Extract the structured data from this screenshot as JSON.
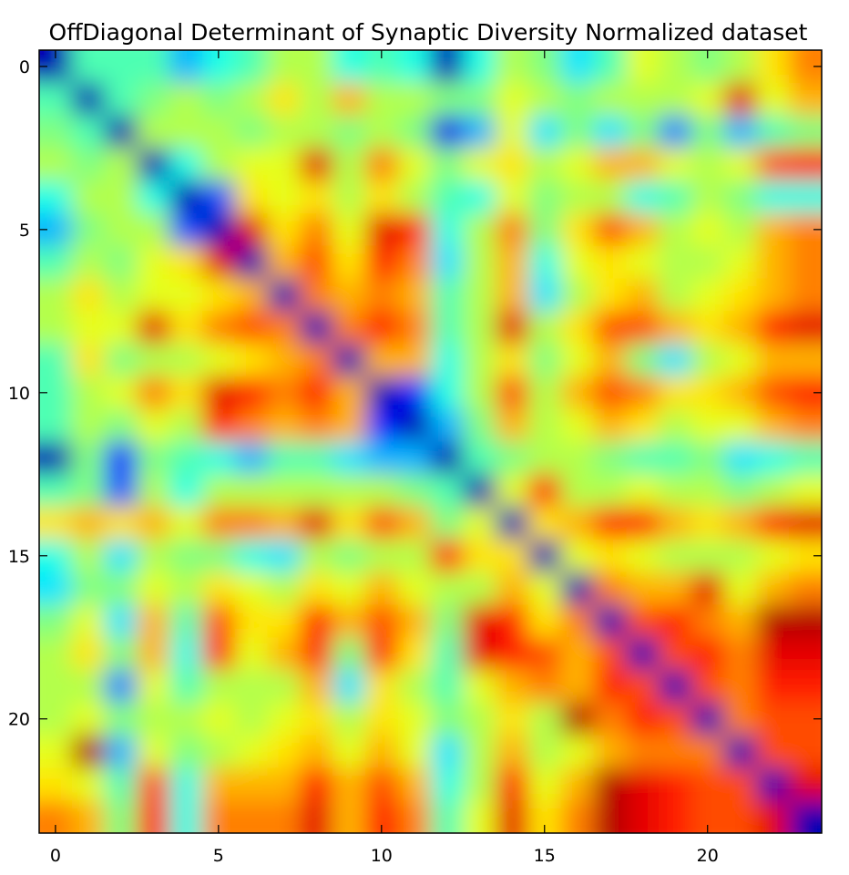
{
  "chart_data": {
    "type": "heatmap",
    "title": "OffDiagonal Determinant of Synaptic Diversity Normalized dataset",
    "xlabel": "",
    "ylabel": "",
    "colormap": "jet",
    "interpolation": "smooth",
    "value_range": [
      0,
      1
    ],
    "x_ticks": [
      0,
      5,
      10,
      15,
      20
    ],
    "y_ticks": [
      0,
      5,
      10,
      15,
      20
    ],
    "xlim": [
      -0.5,
      23.5
    ],
    "ylim": [
      23.5,
      -0.5
    ],
    "grid": false,
    "legend": "none",
    "values": [
      [
        0.05,
        0.45,
        0.45,
        0.45,
        0.3,
        0.4,
        0.45,
        0.55,
        0.55,
        0.4,
        0.45,
        0.4,
        0.05,
        0.4,
        0.55,
        0.5,
        0.35,
        0.45,
        0.6,
        0.55,
        0.5,
        0.55,
        0.65,
        0.75
      ],
      [
        0.45,
        0.05,
        0.45,
        0.5,
        0.55,
        0.5,
        0.55,
        0.65,
        0.55,
        0.7,
        0.55,
        0.55,
        0.5,
        0.5,
        0.6,
        0.55,
        0.5,
        0.55,
        0.55,
        0.55,
        0.6,
        0.9,
        0.6,
        0.7
      ],
      [
        0.5,
        0.45,
        0.05,
        0.55,
        0.55,
        0.55,
        0.5,
        0.55,
        0.55,
        0.5,
        0.55,
        0.5,
        0.1,
        0.3,
        0.6,
        0.35,
        0.5,
        0.35,
        0.5,
        0.25,
        0.5,
        0.3,
        0.45,
        0.5
      ],
      [
        0.55,
        0.5,
        0.55,
        0.05,
        0.4,
        0.55,
        0.6,
        0.6,
        0.9,
        0.55,
        0.75,
        0.6,
        0.5,
        0.6,
        0.65,
        0.55,
        0.6,
        0.7,
        0.7,
        0.6,
        0.55,
        0.6,
        0.8,
        0.85
      ],
      [
        0.4,
        0.55,
        0.55,
        0.4,
        0.05,
        0.2,
        0.65,
        0.6,
        0.65,
        0.55,
        0.65,
        0.55,
        0.45,
        0.4,
        0.6,
        0.5,
        0.55,
        0.55,
        0.4,
        0.45,
        0.55,
        0.5,
        0.4,
        0.4
      ],
      [
        0.3,
        0.5,
        0.55,
        0.55,
        0.2,
        0.05,
        0.9,
        0.65,
        0.75,
        0.6,
        0.9,
        0.85,
        0.4,
        0.55,
        0.75,
        0.5,
        0.65,
        0.8,
        0.7,
        0.55,
        0.6,
        0.55,
        0.7,
        0.75
      ],
      [
        0.45,
        0.55,
        0.5,
        0.6,
        0.65,
        0.9,
        0.05,
        0.7,
        0.8,
        0.65,
        0.85,
        0.75,
        0.35,
        0.55,
        0.7,
        0.4,
        0.6,
        0.65,
        0.6,
        0.55,
        0.55,
        0.6,
        0.7,
        0.75
      ],
      [
        0.55,
        0.65,
        0.55,
        0.6,
        0.6,
        0.65,
        0.7,
        0.05,
        0.75,
        0.7,
        0.75,
        0.7,
        0.45,
        0.55,
        0.7,
        0.35,
        0.55,
        0.65,
        0.7,
        0.55,
        0.6,
        0.65,
        0.7,
        0.75
      ],
      [
        0.55,
        0.6,
        0.6,
        0.9,
        0.65,
        0.75,
        0.8,
        0.75,
        0.05,
        0.75,
        0.85,
        0.75,
        0.45,
        0.55,
        0.9,
        0.55,
        0.65,
        0.8,
        0.8,
        0.7,
        0.65,
        0.7,
        0.85,
        0.9
      ],
      [
        0.45,
        0.65,
        0.5,
        0.55,
        0.55,
        0.6,
        0.65,
        0.7,
        0.75,
        0.05,
        0.7,
        0.7,
        0.4,
        0.55,
        0.65,
        0.5,
        0.6,
        0.7,
        0.5,
        0.35,
        0.55,
        0.6,
        0.7,
        0.7
      ],
      [
        0.45,
        0.55,
        0.6,
        0.75,
        0.65,
        0.9,
        0.85,
        0.75,
        0.85,
        0.7,
        0.05,
        0.15,
        0.4,
        0.55,
        0.8,
        0.55,
        0.7,
        0.8,
        0.75,
        0.65,
        0.65,
        0.7,
        0.8,
        0.85
      ],
      [
        0.45,
        0.55,
        0.5,
        0.6,
        0.55,
        0.85,
        0.75,
        0.7,
        0.75,
        0.7,
        0.15,
        0.05,
        0.3,
        0.5,
        0.7,
        0.55,
        0.6,
        0.7,
        0.65,
        0.55,
        0.6,
        0.6,
        0.7,
        0.75
      ],
      [
        0.05,
        0.5,
        0.15,
        0.5,
        0.45,
        0.4,
        0.3,
        0.45,
        0.45,
        0.35,
        0.3,
        0.3,
        0.05,
        0.45,
        0.5,
        0.55,
        0.55,
        0.5,
        0.45,
        0.45,
        0.5,
        0.35,
        0.4,
        0.45
      ],
      [
        0.45,
        0.5,
        0.2,
        0.55,
        0.4,
        0.55,
        0.55,
        0.55,
        0.55,
        0.55,
        0.55,
        0.5,
        0.45,
        0.05,
        0.6,
        0.85,
        0.55,
        0.55,
        0.6,
        0.55,
        0.55,
        0.5,
        0.55,
        0.6
      ],
      [
        0.65,
        0.7,
        0.65,
        0.7,
        0.6,
        0.75,
        0.75,
        0.7,
        0.9,
        0.65,
        0.8,
        0.7,
        0.5,
        0.6,
        0.05,
        0.65,
        0.7,
        0.85,
        0.85,
        0.7,
        0.65,
        0.7,
        0.85,
        0.9
      ],
      [
        0.4,
        0.55,
        0.35,
        0.55,
        0.5,
        0.5,
        0.4,
        0.35,
        0.55,
        0.5,
        0.55,
        0.55,
        0.85,
        0.65,
        0.65,
        0.05,
        0.6,
        0.65,
        0.6,
        0.55,
        0.55,
        0.55,
        0.6,
        0.65
      ],
      [
        0.35,
        0.5,
        0.5,
        0.6,
        0.55,
        0.65,
        0.6,
        0.55,
        0.65,
        0.6,
        0.7,
        0.6,
        0.55,
        0.55,
        0.7,
        0.6,
        0.05,
        0.75,
        0.7,
        0.7,
        0.9,
        0.6,
        0.7,
        0.75
      ],
      [
        0.5,
        0.6,
        0.35,
        0.7,
        0.45,
        0.8,
        0.65,
        0.65,
        0.85,
        0.7,
        0.8,
        0.7,
        0.5,
        0.9,
        0.85,
        0.65,
        0.75,
        0.05,
        0.8,
        0.85,
        0.75,
        0.7,
        0.95,
        0.95
      ],
      [
        0.55,
        0.65,
        0.5,
        0.7,
        0.4,
        0.85,
        0.6,
        0.7,
        0.85,
        0.5,
        0.85,
        0.65,
        0.45,
        0.9,
        0.85,
        0.8,
        0.7,
        0.8,
        0.05,
        0.8,
        0.85,
        0.75,
        0.9,
        0.9
      ],
      [
        0.55,
        0.55,
        0.25,
        0.6,
        0.45,
        0.55,
        0.55,
        0.55,
        0.7,
        0.35,
        0.65,
        0.55,
        0.45,
        0.6,
        0.7,
        0.75,
        0.7,
        0.85,
        0.8,
        0.05,
        0.8,
        0.75,
        0.85,
        0.85
      ],
      [
        0.55,
        0.6,
        0.5,
        0.55,
        0.55,
        0.6,
        0.55,
        0.6,
        0.65,
        0.55,
        0.65,
        0.6,
        0.5,
        0.55,
        0.65,
        0.55,
        0.95,
        0.75,
        0.85,
        0.8,
        0.05,
        0.75,
        0.8,
        0.8
      ],
      [
        0.6,
        0.95,
        0.3,
        0.6,
        0.5,
        0.55,
        0.6,
        0.65,
        0.7,
        0.6,
        0.7,
        0.6,
        0.35,
        0.55,
        0.7,
        0.55,
        0.6,
        0.7,
        0.75,
        0.75,
        0.75,
        0.05,
        0.8,
        0.8
      ],
      [
        0.65,
        0.6,
        0.45,
        0.8,
        0.4,
        0.7,
        0.7,
        0.7,
        0.85,
        0.7,
        0.8,
        0.7,
        0.4,
        0.55,
        0.85,
        0.6,
        0.7,
        0.95,
        0.9,
        0.85,
        0.8,
        0.8,
        0.05,
        0.9
      ],
      [
        0.75,
        0.7,
        0.5,
        0.85,
        0.4,
        0.75,
        0.75,
        0.75,
        0.9,
        0.7,
        0.85,
        0.75,
        0.45,
        0.6,
        0.9,
        0.65,
        0.75,
        0.95,
        0.9,
        0.85,
        0.8,
        0.8,
        0.9,
        0.05
      ]
    ]
  }
}
